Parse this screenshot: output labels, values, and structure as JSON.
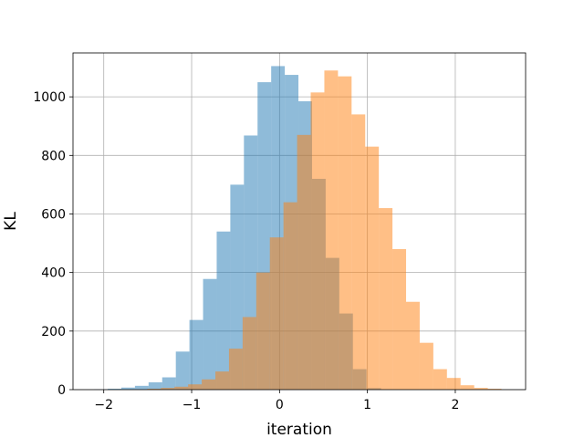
{
  "chart_data": {
    "type": "bar",
    "subtype": "overlapping-histogram",
    "title": "",
    "xlabel": "iteration",
    "ylabel": "KL",
    "xlim": [
      -2.35,
      2.8
    ],
    "ylim": [
      0,
      1150
    ],
    "xticks": [
      -2,
      -1,
      0,
      1,
      2
    ],
    "xtick_labels": [
      "−2",
      "−1",
      "0",
      "1",
      "2"
    ],
    "yticks": [
      0,
      200,
      400,
      600,
      800,
      1000
    ],
    "ytick_labels": [
      "0",
      "200",
      "400",
      "600",
      "800",
      "1000"
    ],
    "grid": true,
    "series": [
      {
        "color": "#1f77b4",
        "alpha": 0.5,
        "bin_width": 0.155,
        "bins_start": [
          -2.11,
          -1.955,
          -1.8,
          -1.645,
          -1.49,
          -1.335,
          -1.18,
          -1.025,
          -0.87,
          -0.715,
          -0.56,
          -0.405,
          -0.25,
          -0.095,
          0.06,
          0.215,
          0.37,
          0.525,
          0.68,
          0.835,
          1.0
        ],
        "values": [
          1,
          3,
          7,
          13,
          25,
          42,
          130,
          238,
          378,
          540,
          700,
          868,
          1050,
          1105,
          1075,
          985,
          720,
          450,
          260,
          70,
          5
        ]
      },
      {
        "color": "#ff7f0e",
        "alpha": 0.5,
        "bin_width": 0.155,
        "bins_start": [
          -1.66,
          -1.505,
          -1.35,
          -1.195,
          -1.04,
          -0.885,
          -0.73,
          -0.575,
          -0.42,
          -0.265,
          -0.11,
          0.045,
          0.2,
          0.355,
          0.51,
          0.665,
          0.82,
          0.975,
          1.13,
          1.285,
          1.44,
          1.595,
          1.75,
          1.905,
          2.06,
          2.215,
          2.37
        ],
        "values": [
          1,
          3,
          6,
          10,
          18,
          35,
          62,
          140,
          248,
          400,
          520,
          640,
          870,
          1015,
          1090,
          1070,
          940,
          830,
          620,
          480,
          300,
          160,
          70,
          40,
          15,
          6,
          3
        ]
      }
    ]
  }
}
